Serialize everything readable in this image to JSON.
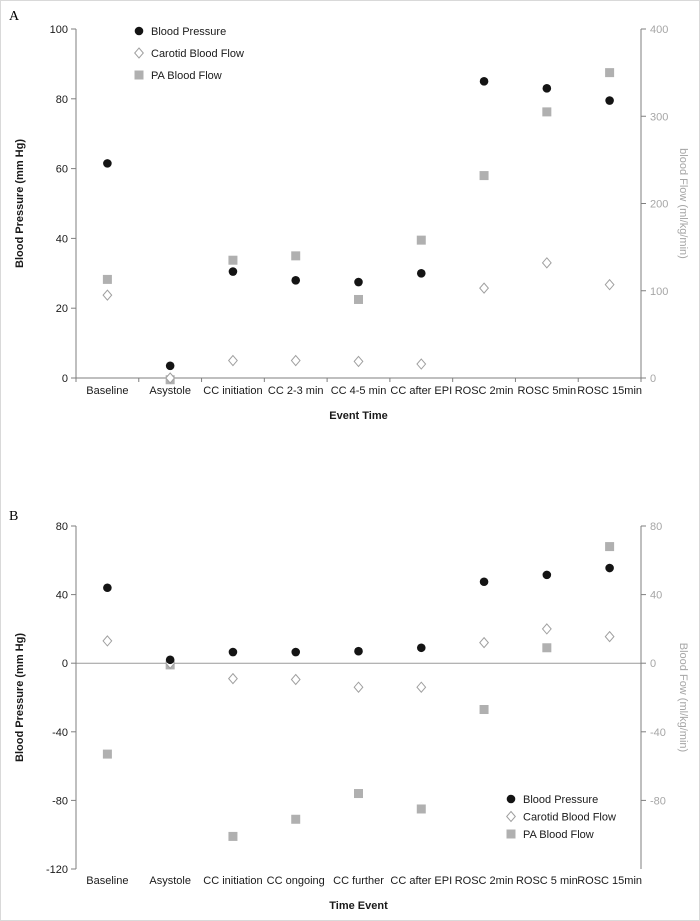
{
  "panels": [
    {
      "letter": "A"
    },
    {
      "letter": "B"
    }
  ],
  "chart_data": [
    {
      "type": "scatter",
      "panel": "A",
      "categories": [
        "Baseline",
        "Asystole",
        "CC initiation",
        "CC 2-3 min",
        "CC 4-5 min",
        "CC after EPI",
        "ROSC 2min",
        "ROSC 5min",
        "ROSC 15min"
      ],
      "xlabel": "Event Time",
      "ylabel_left": "Blood Pressure (mm Hg)",
      "ylabel_right": "blood Flow (ml/kg/min)",
      "ylim_left": [
        0,
        100
      ],
      "ylim_right": [
        0,
        400
      ],
      "yticks_left": [
        0,
        20,
        40,
        60,
        80,
        100
      ],
      "yticks_right": [
        0,
        100,
        200,
        300,
        400
      ],
      "bottom_axis": true,
      "zero_line": false,
      "grid": false,
      "legend_position": "top-left",
      "series": [
        {
          "name": "Blood Pressure",
          "axis": "left",
          "marker": "circle",
          "color": "#141414",
          "values": [
            61.5,
            3.5,
            30.5,
            28,
            27.5,
            30,
            85,
            83,
            79.5
          ]
        },
        {
          "name": "Carotid Blood Flow",
          "axis": "right",
          "marker": "diamond",
          "color": "#a0a0a0",
          "values": [
            95,
            0,
            20,
            20,
            19,
            16,
            103,
            132,
            107
          ]
        },
        {
          "name": "PA Blood Flow",
          "axis": "right",
          "marker": "square",
          "color": "#b0b0b0",
          "values": [
            113,
            -2,
            135,
            140,
            90,
            158,
            232,
            305,
            350
          ]
        }
      ]
    },
    {
      "type": "scatter",
      "panel": "B",
      "categories": [
        "Baseline",
        "Asystole",
        "CC initiation",
        "CC ongoing",
        "CC further",
        "CC after EPI",
        "ROSC 2min",
        "ROSC 5 min",
        "ROSC 15min"
      ],
      "xlabel": "Time Event",
      "ylabel_left": "Blood Pressure (mm Hg)",
      "ylabel_right": "Blood Fow (ml/kg/min)",
      "ylim_left": [
        -120,
        80
      ],
      "ylim_right": [
        -120,
        80
      ],
      "yticks_left": [
        -120,
        -80,
        -40,
        0,
        40,
        80
      ],
      "yticks_right": [
        -80,
        -40,
        0,
        40,
        80
      ],
      "bottom_axis": false,
      "zero_line": true,
      "grid": false,
      "legend_position": "bottom-right",
      "series": [
        {
          "name": "Blood Pressure",
          "axis": "left",
          "marker": "circle",
          "color": "#141414",
          "values": [
            44,
            2,
            6.5,
            6.5,
            7,
            9,
            47.5,
            51.5,
            55.5
          ]
        },
        {
          "name": "Carotid Blood Flow",
          "axis": "right",
          "marker": "diamond",
          "color": "#a0a0a0",
          "values": [
            13,
            0,
            -9,
            -9.5,
            -14,
            -14,
            12,
            20,
            15.5
          ]
        },
        {
          "name": "PA Blood Flow",
          "axis": "right",
          "marker": "square",
          "color": "#b0b0b0",
          "values": [
            -53,
            -1,
            -101,
            -91,
            -76,
            -85,
            -27,
            9,
            68
          ]
        }
      ]
    }
  ]
}
